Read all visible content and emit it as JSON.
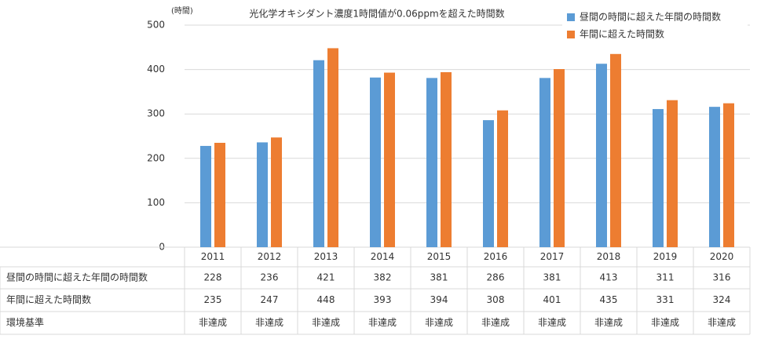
{
  "chart_data": {
    "type": "bar",
    "title": "光化学オキシダント濃度1時間値が0.06ppmを超えた時間数",
    "y_label": "(時間)",
    "categories": [
      "2011",
      "2012",
      "2013",
      "2014",
      "2015",
      "2016",
      "2017",
      "2018",
      "2019",
      "2020"
    ],
    "series": [
      {
        "name": "昼間の時間に超えた年間の時間数",
        "color": "#5b9bd5",
        "values": [
          228,
          236,
          421,
          382,
          381,
          286,
          381,
          413,
          311,
          316
        ]
      },
      {
        "name": "年間に超えた時間数",
        "color": "#ed7d31",
        "values": [
          235,
          247,
          448,
          393,
          394,
          308,
          401,
          435,
          331,
          324
        ]
      }
    ],
    "standard": {
      "label": "環境基準",
      "values": [
        "非達成",
        "非達成",
        "非達成",
        "非達成",
        "非達成",
        "非達成",
        "非達成",
        "非達成",
        "非達成",
        "非達成"
      ]
    },
    "ylim": [
      0,
      500
    ],
    "yticks": [
      0,
      100,
      200,
      300,
      400,
      500
    ],
    "grid": true,
    "legend": "top-right"
  }
}
